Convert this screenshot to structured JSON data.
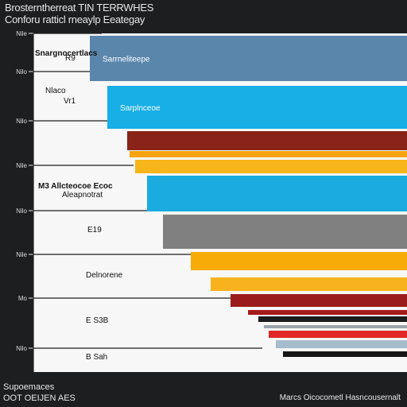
{
  "chart_data": {
    "type": "bar",
    "orientation": "horizontal",
    "title": "Brosterntherreat TIN TERRWHES",
    "subtitle": "Conforu ratticl rneaylp Eeategay",
    "y_tick_labels": [
      "Nile",
      "Nilo",
      "Nilo",
      "Nile",
      "Nilo",
      "Nile",
      "Mo",
      "Nilo"
    ],
    "bars": [
      {
        "label": "Sarrneliteepe",
        "value": 100,
        "color": "#5b86ab"
      },
      {
        "label": "Sarplnceoe",
        "value": 100,
        "color": "#18aee6"
      },
      {
        "label": "",
        "value": 100,
        "color": "#8a2418"
      },
      {
        "label": "",
        "value": 100,
        "color": "#f5a30e"
      },
      {
        "label": "",
        "value": 100,
        "color": "#f7b51a"
      },
      {
        "label": "",
        "value": 100,
        "color": "#1aabe0"
      },
      {
        "label": "",
        "value": 100,
        "color": "#808080"
      },
      {
        "label": "",
        "value": 100,
        "color": "#f7ab08"
      },
      {
        "label": "",
        "value": 100,
        "color": "#f8b21e"
      },
      {
        "label": "",
        "value": 100,
        "color": "#9b1c1c"
      },
      {
        "label": "",
        "value": 100,
        "color": "#a51a1a"
      },
      {
        "label": "",
        "value": 100,
        "color": "#1c1c1c"
      },
      {
        "label": "",
        "value": 100,
        "color": "#9aa4ac"
      },
      {
        "label": "",
        "value": 100,
        "color": "#e02828"
      },
      {
        "label": "",
        "value": 100,
        "color": "#a4bccc"
      },
      {
        "label": "",
        "value": 100,
        "color": "#161616"
      }
    ],
    "annotations": [
      {
        "text": "Snargnocertlacs"
      },
      {
        "text": "R9"
      },
      {
        "text": "Nlaco"
      },
      {
        "text": "Vr1"
      },
      {
        "text": "M3 Allcteocoe Ecoc"
      },
      {
        "text": "Aleapnotrat"
      },
      {
        "text": "E19"
      },
      {
        "text": "Delnorene"
      },
      {
        "text": "E S3B"
      },
      {
        "text": "B Sah"
      }
    ],
    "palette": {
      "background": "#1c1e20",
      "plot_area": "#f7f7f7",
      "gridline": "#1e1e1e"
    },
    "grid": true,
    "legend": "none"
  },
  "footer": {
    "left_line1": "Supoemaces",
    "left_line2": "OOT OEIJEN AES",
    "right": "Marcs Oicocometl Hasncousernalt"
  }
}
